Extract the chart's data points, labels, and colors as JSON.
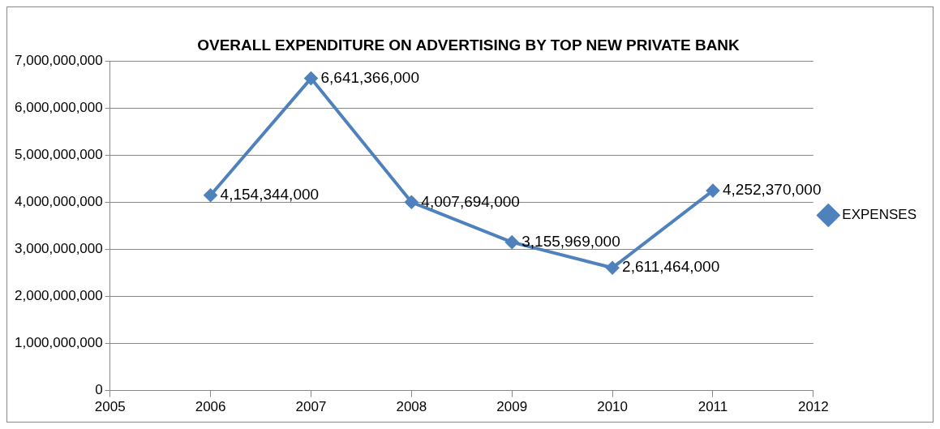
{
  "chart_data": {
    "type": "line",
    "title": "OVERALL EXPENDITURE ON ADVERTISING BY TOP NEW PRIVATE BANK",
    "x": [
      2006,
      2007,
      2008,
      2009,
      2010,
      2011
    ],
    "series": [
      {
        "name": "EXPENSES",
        "color": "#4f81bd",
        "values": [
          4154344000,
          6641366000,
          4007694000,
          3155969000,
          2611464000,
          4252370000
        ],
        "value_labels": [
          "4,154,344,000",
          "6,641,366,000",
          "4,007,694,000",
          "3,155,969,000",
          "2,611,464,000",
          "4,252,370,000"
        ]
      }
    ],
    "xlim": [
      2005,
      2012
    ],
    "xticks": [
      2005,
      2006,
      2007,
      2008,
      2009,
      2010,
      2011,
      2012
    ],
    "ylim": [
      0,
      7000000000
    ],
    "yticks": [
      0,
      {
        "value": 1000000000,
        "label": "1,000,000,000"
      },
      {
        "value": 2000000000,
        "label": "2,000,000,000"
      },
      {
        "value": 3000000000,
        "label": "3,000,000,000"
      },
      {
        "value": 4000000000,
        "label": "4,000,000,000"
      },
      {
        "value": 5000000000,
        "label": "5,000,000,000"
      },
      {
        "value": 6000000000,
        "label": "6,000,000,000"
      },
      {
        "value": 7000000000,
        "label": "7,000,000,000"
      }
    ],
    "grid": "y",
    "legend": "right",
    "marker": "diamond",
    "line_style": "solid"
  }
}
